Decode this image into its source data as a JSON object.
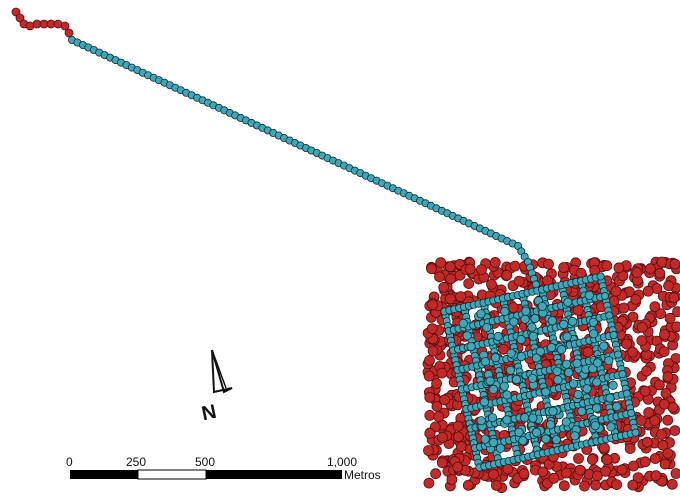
{
  "map": {
    "colors": {
      "network_node": "#3fa7b8",
      "network_outline": "#0f2b33",
      "outer_node": "#c22a2a",
      "outer_outline": "#5a0d0d"
    },
    "north_arrow": {
      "letter": "N"
    },
    "scale_bar": {
      "labels": [
        "0",
        "250",
        "500",
        "1,000"
      ],
      "unit": "Metros",
      "segment_fills": [
        "black",
        "white",
        "black",
        "black"
      ]
    },
    "legend_markers": [
      "red-node-icon",
      "teal-node-icon"
    ]
  }
}
